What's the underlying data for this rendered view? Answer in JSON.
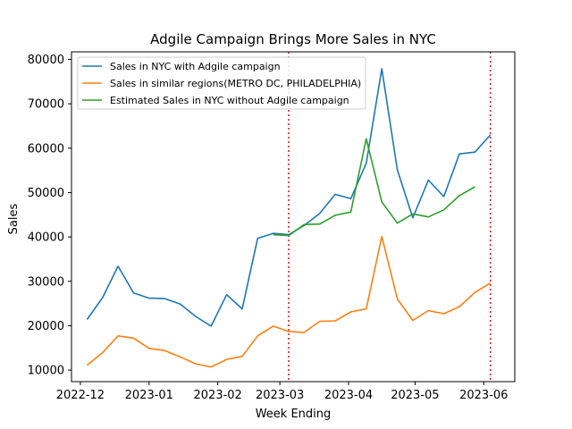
{
  "chart_data": {
    "type": "line",
    "title": "Adgile Campaign Brings More Sales in NYC",
    "xlabel": "Week Ending",
    "ylabel": "Sales",
    "x_ticks": [
      {
        "date": "2022-12-01",
        "label": "2022-12"
      },
      {
        "date": "2023-01-01",
        "label": "2023-01"
      },
      {
        "date": "2023-02-01",
        "label": "2023-02"
      },
      {
        "date": "2023-03-01",
        "label": "2023-03"
      },
      {
        "date": "2023-04-01",
        "label": "2023-04"
      },
      {
        "date": "2023-05-01",
        "label": "2023-05"
      },
      {
        "date": "2023-06-01",
        "label": "2023-06"
      }
    ],
    "xlim": [
      "2022-11-27",
      "2023-06-15"
    ],
    "y_ticks": [
      10000,
      20000,
      30000,
      40000,
      50000,
      60000,
      70000,
      80000
    ],
    "y_tick_labels": [
      "10000",
      "20000",
      "30000",
      "40000",
      "50000",
      "60000",
      "70000",
      "80000"
    ],
    "ylim": [
      7400,
      81700
    ],
    "grid": false,
    "legend_position": "top-left",
    "vlines": [
      {
        "x": "2023-03-05",
        "color": "#d62728",
        "style": "dotted"
      },
      {
        "x": "2023-06-04",
        "color": "#d62728",
        "style": "dotted"
      }
    ],
    "series": [
      {
        "name": "Sales in NYC with Adgile campaign",
        "color": "#1f77b4",
        "points": [
          [
            "2022-12-04",
            21400
          ],
          [
            "2022-12-11",
            26300
          ],
          [
            "2022-12-18",
            33400
          ],
          [
            "2022-12-25",
            27400
          ],
          [
            "2023-01-01",
            26200
          ],
          [
            "2023-01-08",
            26100
          ],
          [
            "2023-01-15",
            24900
          ],
          [
            "2023-01-22",
            22100
          ],
          [
            "2023-01-29",
            19900
          ],
          [
            "2023-02-05",
            27000
          ],
          [
            "2023-02-12",
            23800
          ],
          [
            "2023-02-19",
            39700
          ],
          [
            "2023-02-26",
            40800
          ],
          [
            "2023-03-05",
            40500
          ],
          [
            "2023-03-12",
            42600
          ],
          [
            "2023-03-19",
            45300
          ],
          [
            "2023-03-26",
            49600
          ],
          [
            "2023-04-02",
            48600
          ],
          [
            "2023-04-09",
            56600
          ],
          [
            "2023-04-16",
            77900
          ],
          [
            "2023-04-23",
            55100
          ],
          [
            "2023-04-30",
            44300
          ],
          [
            "2023-05-07",
            52800
          ],
          [
            "2023-05-14",
            49100
          ],
          [
            "2023-05-21",
            58700
          ],
          [
            "2023-05-28",
            59100
          ],
          [
            "2023-06-04",
            63000
          ]
        ]
      },
      {
        "name": "Sales in similar regions(METRO DC, PHILADELPHIA)",
        "color": "#ff7f0e",
        "points": [
          [
            "2022-12-04",
            11100
          ],
          [
            "2022-12-11",
            13900
          ],
          [
            "2022-12-18",
            17700
          ],
          [
            "2022-12-25",
            17200
          ],
          [
            "2023-01-01",
            14900
          ],
          [
            "2023-01-08",
            14400
          ],
          [
            "2023-01-15",
            13000
          ],
          [
            "2023-01-22",
            11400
          ],
          [
            "2023-01-29",
            10700
          ],
          [
            "2023-02-05",
            12400
          ],
          [
            "2023-02-12",
            13100
          ],
          [
            "2023-02-19",
            17700
          ],
          [
            "2023-02-26",
            19900
          ],
          [
            "2023-03-05",
            18700
          ],
          [
            "2023-03-12",
            18500
          ],
          [
            "2023-03-19",
            21000
          ],
          [
            "2023-03-26",
            21100
          ],
          [
            "2023-04-02",
            23100
          ],
          [
            "2023-04-09",
            23800
          ],
          [
            "2023-04-16",
            40100
          ],
          [
            "2023-04-23",
            26000
          ],
          [
            "2023-04-30",
            21200
          ],
          [
            "2023-05-07",
            23400
          ],
          [
            "2023-05-14",
            22700
          ],
          [
            "2023-05-21",
            24300
          ],
          [
            "2023-05-28",
            27500
          ],
          [
            "2023-06-04",
            29600
          ]
        ]
      },
      {
        "name": "Estimated Sales in NYC without Adgile campaign",
        "color": "#2ca02c",
        "points": [
          [
            "2023-02-26",
            40500
          ],
          [
            "2023-03-05",
            40300
          ],
          [
            "2023-03-12",
            42800
          ],
          [
            "2023-03-19",
            42900
          ],
          [
            "2023-03-26",
            44900
          ],
          [
            "2023-04-02",
            45600
          ],
          [
            "2023-04-09",
            62100
          ],
          [
            "2023-04-16",
            47900
          ],
          [
            "2023-04-23",
            43100
          ],
          [
            "2023-04-30",
            45200
          ],
          [
            "2023-05-07",
            44500
          ],
          [
            "2023-05-14",
            46100
          ],
          [
            "2023-05-21",
            49300
          ],
          [
            "2023-05-28",
            51300
          ]
        ]
      }
    ]
  }
}
